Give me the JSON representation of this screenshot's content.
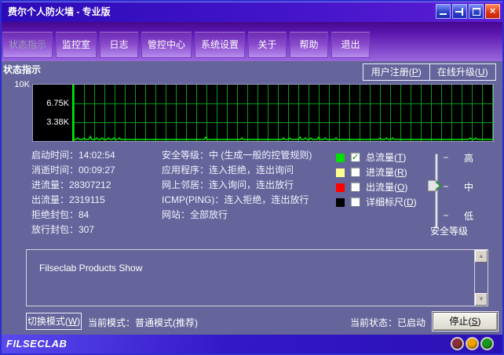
{
  "titlebar": {
    "title": "费尔个人防火墙 - 专业版"
  },
  "icons": {
    "check": "✓",
    "close": "×",
    "scroll_up": "▲",
    "scroll_down": "▼"
  },
  "tabs": {
    "active_index": 0,
    "items": [
      {
        "label": "状态指示"
      },
      {
        "label": "监控室"
      },
      {
        "label": "日志"
      },
      {
        "label": "管控中心"
      },
      {
        "label": "系统设置"
      },
      {
        "label": "关于"
      },
      {
        "label": "帮助"
      },
      {
        "label": "退出"
      }
    ]
  },
  "section": {
    "title": "状态指示"
  },
  "top_buttons": {
    "register": {
      "pre": "用户注册(",
      "key": "P",
      "post": ")"
    },
    "upgrade": {
      "pre": "在线升级(",
      "key": "U",
      "post": ")"
    }
  },
  "graph": {
    "y_labels": {
      "top": "10K",
      "mid": "6.75K",
      "low": "3.38K"
    },
    "line_color": "#00e400",
    "spikes": [
      [
        0.01,
        2
      ],
      [
        0.025,
        2
      ],
      [
        0.04,
        4
      ],
      [
        0.055,
        2
      ],
      [
        0.068,
        2
      ],
      [
        0.082,
        2
      ],
      [
        0.095,
        2
      ],
      [
        0.108,
        2
      ],
      [
        0.315,
        3
      ],
      [
        0.4,
        2
      ],
      [
        0.5,
        2
      ],
      [
        0.515,
        2
      ],
      [
        0.54,
        3
      ],
      [
        0.553,
        2
      ],
      [
        0.565,
        2
      ],
      [
        0.585,
        3
      ],
      [
        0.6,
        2
      ],
      [
        0.625,
        2
      ],
      [
        0.73,
        2
      ],
      [
        0.745,
        2
      ],
      [
        0.76,
        2
      ],
      [
        0.945,
        2
      ],
      [
        0.958,
        2
      ]
    ]
  },
  "stats_left": [
    "启动时间：14:02:54",
    "消逝时间：00:09:27",
    "进流量：28307212",
    "出流量：2319115",
    "拒绝封包：84",
    "放行封包：307"
  ],
  "policy": [
    "安全等级：中 (生成一般的控管规则)",
    "应用程序：连入拒绝，连出询问",
    "网上邻居：连入询问，连出放行",
    "ICMP(PING)：连入拒绝，连出放行",
    "网站：全部放行"
  ],
  "legend": {
    "items": [
      {
        "color": "#00dd00",
        "checked": true,
        "pre": "总流量(",
        "key": "T",
        "post": ")"
      },
      {
        "color": "#ffff90",
        "checked": false,
        "pre": "进流量(",
        "key": "R",
        "post": ")"
      },
      {
        "color": "#ff0000",
        "checked": false,
        "pre": "出流量(",
        "key": "O",
        "post": ")"
      },
      {
        "color": "#000000",
        "checked": false,
        "pre": "详细标尺(",
        "key": "D",
        "post": ")"
      }
    ]
  },
  "slider": {
    "labels": {
      "high": "高",
      "mid": "中",
      "low": "低"
    },
    "caption": "安全等级",
    "value": "中"
  },
  "marquee": {
    "text": "Filseclab Products Show"
  },
  "bottom": {
    "switch_mode": {
      "pre": "切换模式(",
      "key": "W",
      "post": ")"
    },
    "current_mode": "当前模式：普通模式(推荐)",
    "current_state": "当前状态：已启动",
    "stop": {
      "pre": "停止(",
      "key": "S",
      "post": ")"
    }
  },
  "footer": {
    "brand": "FILSECLAB",
    "lights": [
      "#8a2c3a",
      "#f2a200",
      "#18981a"
    ]
  }
}
